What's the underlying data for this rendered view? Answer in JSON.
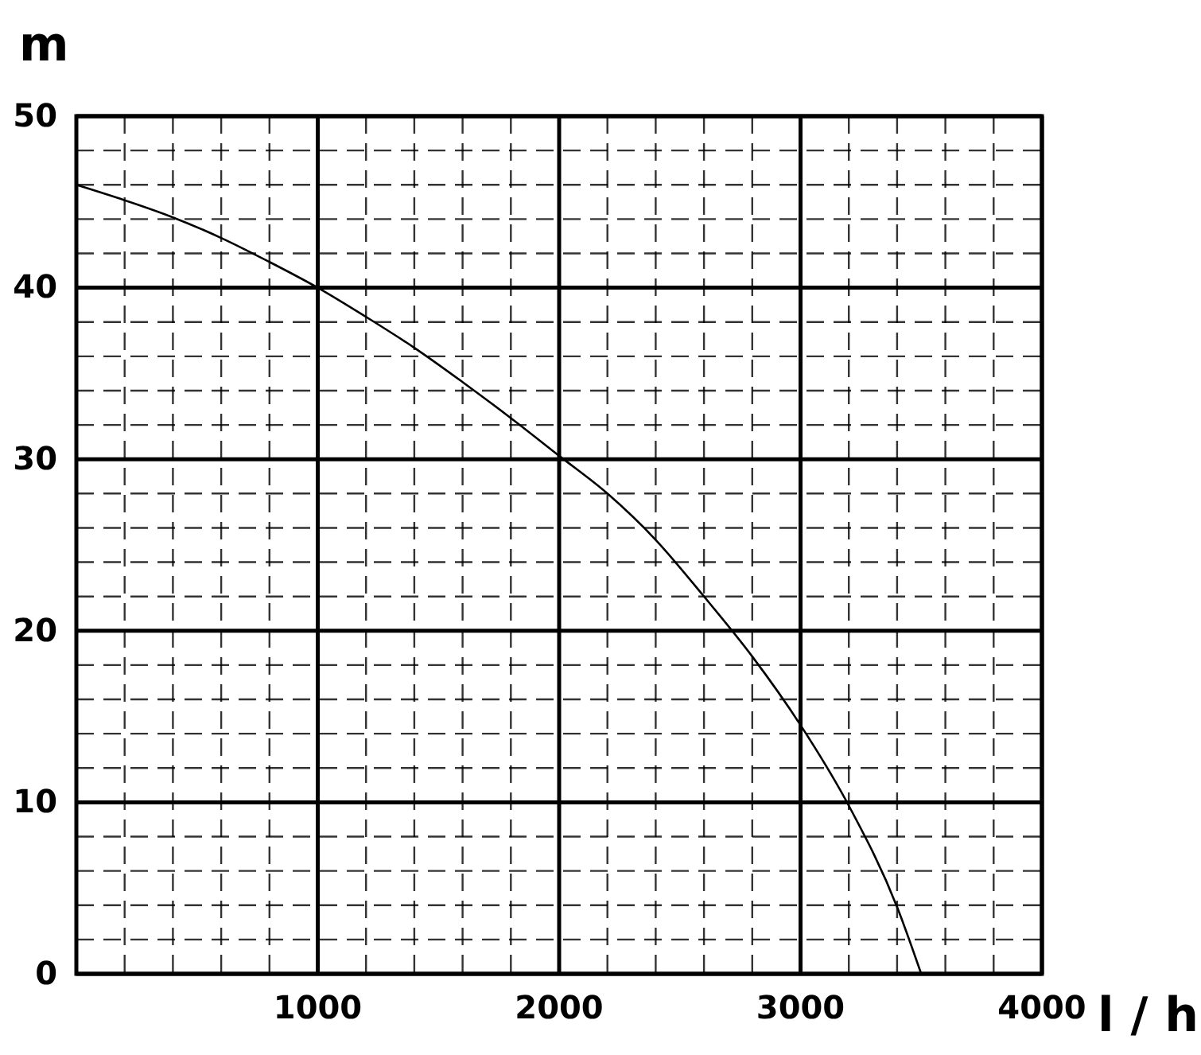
{
  "chart_data": {
    "type": "line",
    "xlabel": "l / h",
    "ylabel": "m",
    "x": [
      0,
      200,
      400,
      600,
      800,
      1000,
      1200,
      1400,
      1600,
      1800,
      2000,
      2200,
      2400,
      2600,
      2800,
      3000,
      3200,
      3400,
      3500
    ],
    "series": [
      {
        "color": "#000000",
        "values": [
          46,
          45.1,
          44.1,
          42.9,
          41.5,
          40,
          38.3,
          36.5,
          34.5,
          32.4,
          30.2,
          28,
          25.3,
          22,
          18.5,
          14.5,
          9.8,
          3.9,
          0
        ]
      }
    ],
    "xlim": [
      0,
      4000
    ],
    "ylim": [
      0,
      50
    ],
    "xticks": [
      {
        "value": 0,
        "label": null
      },
      {
        "value": 200,
        "label": null
      },
      {
        "value": 400,
        "label": null
      },
      {
        "value": 600,
        "label": null
      },
      {
        "value": 800,
        "label": null
      },
      1000,
      {
        "value": 1200,
        "label": null
      },
      {
        "value": 1400,
        "label": null
      },
      {
        "value": 1600,
        "label": null
      },
      {
        "value": 1800,
        "label": null
      },
      2000,
      {
        "value": 2200,
        "label": null
      },
      {
        "value": 2400,
        "label": null
      },
      {
        "value": 2600,
        "label": null
      },
      {
        "value": 2800,
        "label": null
      },
      3000,
      {
        "value": 3200,
        "label": null
      },
      {
        "value": 3400,
        "label": null
      },
      {
        "value": 3600,
        "label": null
      },
      {
        "value": 3800,
        "label": null
      },
      4000
    ],
    "yticks": [
      0,
      {
        "value": 2,
        "label": null
      },
      {
        "value": 4,
        "label": null
      },
      {
        "value": 6,
        "label": null
      },
      {
        "value": 8,
        "label": null
      },
      10,
      {
        "value": 12,
        "label": null
      },
      {
        "value": 14,
        "label": null
      },
      {
        "value": 16,
        "label": null
      },
      {
        "value": 18,
        "label": null
      },
      20,
      {
        "value": 22,
        "label": null
      },
      {
        "value": 24,
        "label": null
      },
      {
        "value": 26,
        "label": null
      },
      {
        "value": 28,
        "label": null
      },
      30,
      {
        "value": 32,
        "label": null
      },
      {
        "value": 34,
        "label": null
      },
      {
        "value": 36,
        "label": null
      },
      {
        "value": 38,
        "label": null
      },
      40,
      {
        "value": 42,
        "label": null
      },
      {
        "value": 44,
        "label": null
      },
      {
        "value": 46,
        "label": null
      },
      {
        "value": 48,
        "label": null
      },
      50
    ],
    "grid": true,
    "line_style": "solid",
    "marker": "none"
  }
}
